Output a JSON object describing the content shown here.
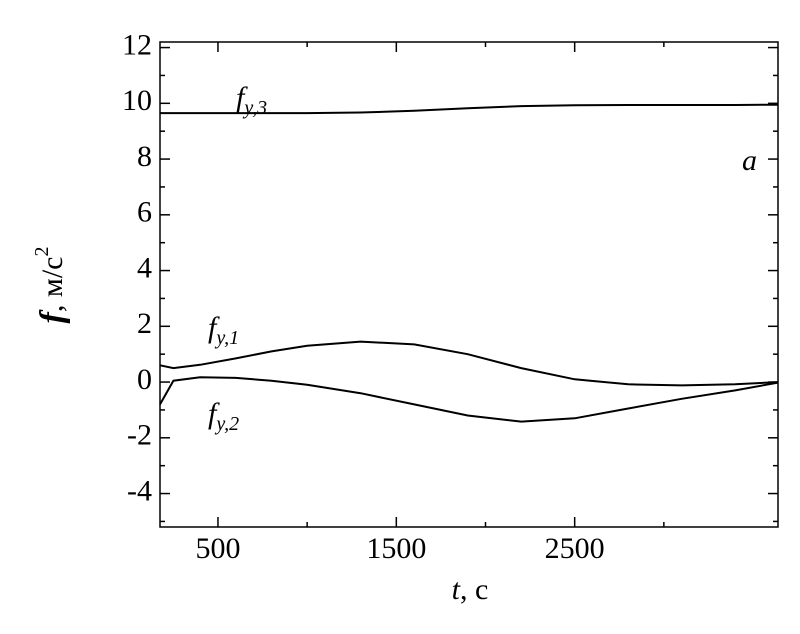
{
  "chart_data": {
    "type": "line",
    "x": [
      175,
      250,
      400,
      600,
      800,
      1000,
      1300,
      1600,
      1900,
      2200,
      2500,
      2800,
      3100,
      3400,
      3640
    ],
    "series": [
      {
        "name": "f",
        "subscript": "y,1",
        "color": "#000000",
        "values": [
          0.6,
          0.5,
          0.62,
          0.85,
          1.1,
          1.3,
          1.45,
          1.35,
          1.0,
          0.5,
          0.1,
          -0.08,
          -0.12,
          -0.08,
          0.0
        ]
      },
      {
        "name": "f",
        "subscript": "y,2",
        "color": "#000000",
        "values": [
          -0.8,
          0.05,
          0.17,
          0.15,
          0.05,
          -0.1,
          -0.4,
          -0.8,
          -1.2,
          -1.42,
          -1.3,
          -0.95,
          -0.6,
          -0.3,
          -0.02
        ]
      },
      {
        "name": "f",
        "subscript": "y,3",
        "color": "#000000",
        "values": [
          9.65,
          9.65,
          9.65,
          9.65,
          9.65,
          9.65,
          9.67,
          9.73,
          9.82,
          9.9,
          9.93,
          9.94,
          9.94,
          9.94,
          9.95
        ]
      }
    ],
    "xlabel": {
      "symbol": "t",
      "unit": ", с"
    },
    "ylabel": {
      "symbol": "f",
      "unit": ", м/с",
      "power": "2"
    },
    "panel_label": "a",
    "xlim": [
      175,
      3640
    ],
    "ylim": [
      -5.2,
      12.2
    ],
    "xticks": [
      500,
      1500,
      2500
    ],
    "xminor_ticks": [
      1000,
      2000,
      3000
    ],
    "yticks": [
      -4,
      -2,
      0,
      2,
      4,
      6,
      8,
      10,
      12
    ],
    "yminor_ticks": [
      -5,
      -3,
      -1,
      1,
      3,
      5,
      7,
      9,
      11
    ],
    "grid": false
  }
}
